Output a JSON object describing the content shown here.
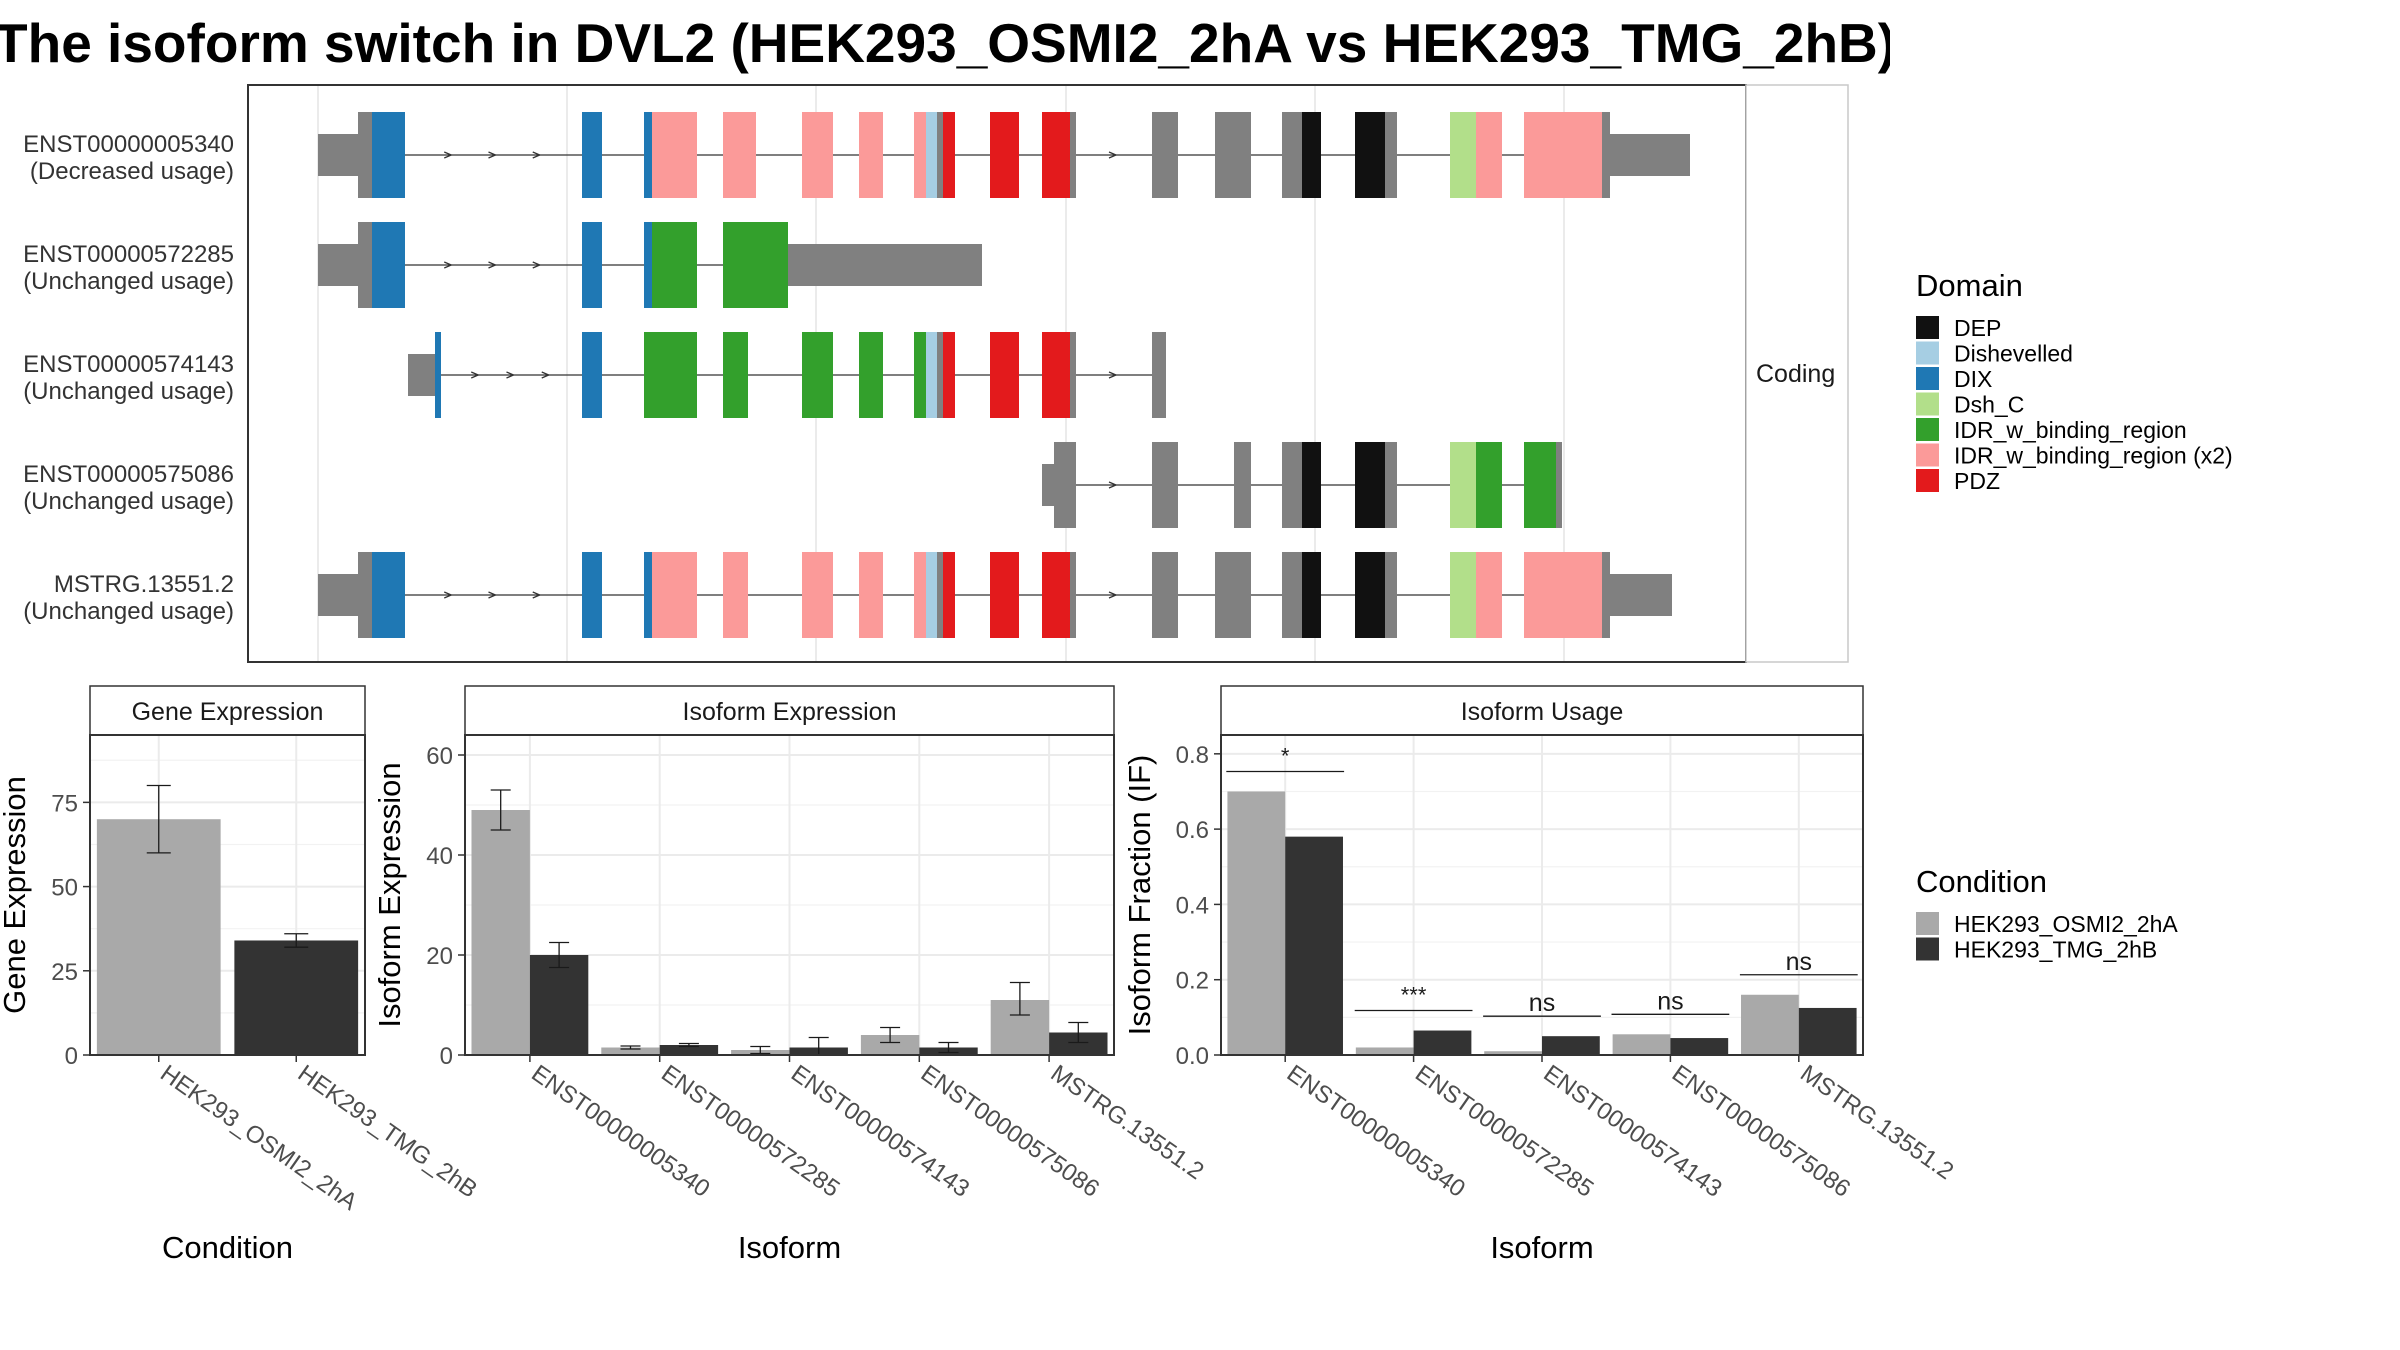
{
  "title": "The isoform switch in DVL2 (HEK293_OSMI2_2hA vs HEK293_TMG_2hB)",
  "colors": {
    "DEP": "#111111",
    "Dishevelled": "#a6cee3",
    "DIX": "#1f78b4",
    "Dsh_C": "#b2df8a",
    "IDR_w_binding_region": "#33a02c",
    "IDR_w_binding_region (x2)": "#fb9a99",
    "PDZ": "#e31a1c",
    "noncoding_exon": "#808080",
    "cond_a": "#a9a9a9",
    "cond_b": "#333333",
    "grid": "#ebebeb"
  },
  "structure": {
    "facet_label": "Coding",
    "isoforms": [
      {
        "id": "ENST00000005340",
        "usage": "(Decreased usage)"
      },
      {
        "id": "ENST00000572285",
        "usage": "(Unchanged usage)"
      },
      {
        "id": "ENST00000574143",
        "usage": "(Unchanged usage)"
      },
      {
        "id": "ENST00000575086",
        "usage": "(Unchanged usage)"
      },
      {
        "id": "MSTRG.13551.2",
        "usage": "(Unchanged usage)"
      }
    ]
  },
  "legend_domain": {
    "title": "Domain",
    "items": [
      "DEP",
      "Dishevelled",
      "DIX",
      "Dsh_C",
      "IDR_w_binding_region",
      "IDR_w_binding_region (x2)",
      "PDZ"
    ]
  },
  "legend_condition": {
    "title": "Condition",
    "items": [
      "HEK293_OSMI2_2hA",
      "HEK293_TMG_2hB"
    ]
  },
  "chart_data": [
    {
      "type": "bar",
      "title": "Gene Expression",
      "xlabel": "Condition",
      "ylabel": "Gene Expression",
      "categories": [
        "HEK293_OSMI2_2hA",
        "HEK293_TMG_2hB"
      ],
      "values": [
        70,
        34
      ],
      "error_low": [
        60,
        32
      ],
      "error_high": [
        80,
        36
      ],
      "ylim": [
        0,
        95
      ],
      "yticks": [
        0,
        25,
        50,
        75
      ]
    },
    {
      "type": "bar",
      "title": "Isoform Expression",
      "xlabel": "Isoform",
      "ylabel": "Isoform Expression",
      "categories": [
        "ENST00000005340",
        "ENST00000572285",
        "ENST00000574143",
        "ENST00000575086",
        "MSTRG.13551.2"
      ],
      "series": [
        {
          "name": "HEK293_OSMI2_2hA",
          "values": [
            49,
            1.5,
            1,
            4,
            11
          ],
          "error_low": [
            45,
            1.2,
            0.3,
            2.5,
            8
          ],
          "error_high": [
            53,
            1.8,
            1.7,
            5.5,
            14.5
          ]
        },
        {
          "name": "HEK293_TMG_2hB",
          "values": [
            20,
            2,
            1.5,
            1.5,
            4.5
          ],
          "error_low": [
            17.5,
            1.7,
            0,
            0.5,
            2.5
          ],
          "error_high": [
            22.5,
            2.3,
            3.5,
            2.5,
            6.5
          ]
        }
      ],
      "ylim": [
        0,
        64
      ],
      "yticks": [
        0,
        20,
        40,
        60
      ]
    },
    {
      "type": "bar",
      "title": "Isoform Usage",
      "xlabel": "Isoform",
      "ylabel": "Isoform Fraction (IF)",
      "categories": [
        "ENST00000005340",
        "ENST00000572285",
        "ENST00000574143",
        "ENST00000575086",
        "MSTRG.13551.2"
      ],
      "series": [
        {
          "name": "HEK293_OSMI2_2hA",
          "values": [
            0.7,
            0.02,
            0.01,
            0.055,
            0.16
          ]
        },
        {
          "name": "HEK293_TMG_2hB",
          "values": [
            0.58,
            0.065,
            0.05,
            0.045,
            0.125
          ]
        }
      ],
      "significance": [
        "*",
        "***",
        "ns",
        "ns",
        "ns"
      ],
      "ylim": [
        0,
        0.85
      ],
      "yticks": [
        0.0,
        0.2,
        0.4,
        0.6,
        0.8
      ],
      "ytick_labels": [
        "0.0",
        "0.2",
        "0.4",
        "0.6",
        "0.8"
      ]
    }
  ]
}
